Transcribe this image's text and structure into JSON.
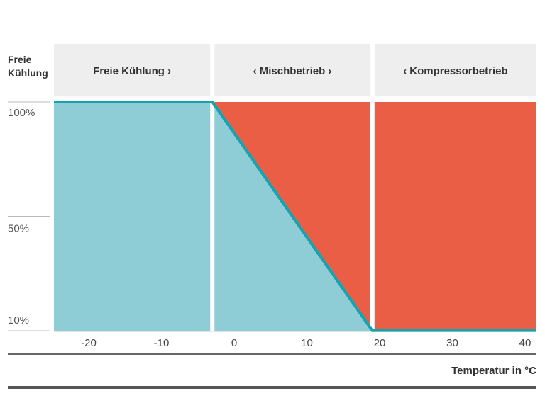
{
  "chart_data": {
    "type": "area",
    "ylabel": "Freie Kühlung",
    "xlabel": "Temperatur in °C",
    "x_ticks": [
      -20,
      -10,
      0,
      10,
      20,
      30,
      40
    ],
    "y_ticks": [
      {
        "value": 100,
        "label": "100%"
      },
      {
        "value": 50,
        "label": "50%"
      },
      {
        "value": 10,
        "label": "10%"
      }
    ],
    "xlim": [
      -25,
      42
    ],
    "ylim": [
      0,
      100
    ],
    "regions": [
      {
        "label": "Freie Kühlung",
        "arrow_left": false,
        "arrow_right": true,
        "x_start": -25,
        "x_end": -3
      },
      {
        "label": "Mischbetrieb",
        "arrow_left": true,
        "arrow_right": true,
        "x_start": -3,
        "x_end": 19
      },
      {
        "label": "Kompressorbetrieb",
        "arrow_left": true,
        "arrow_right": false,
        "x_start": 19,
        "x_end": 42
      }
    ],
    "series": [
      {
        "x": [
          -25,
          -3,
          19,
          42
        ],
        "y": [
          100,
          100,
          0,
          0
        ]
      }
    ],
    "colors": {
      "free_cooling": "#8ecdd6",
      "compressor": "#e95e44",
      "line": "#14a3b0",
      "header_bg": "#eeeeee"
    }
  }
}
